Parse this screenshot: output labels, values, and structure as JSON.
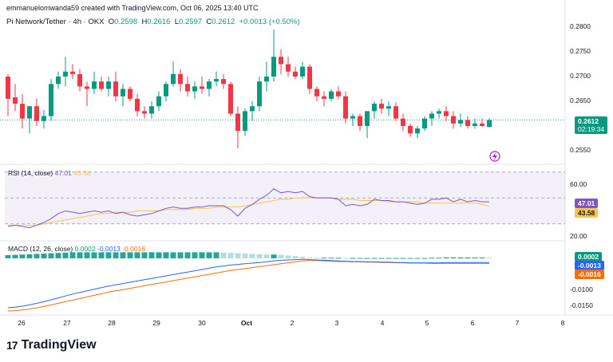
{
  "header": {
    "created_by": "emmanuelomwanda59 created with TradingView.com, Oct 06, 2025 13:40 UTC"
  },
  "symbol": {
    "name": "Pi Network/Tether · 4h · OKX",
    "o_label": "O",
    "o": "0.2598",
    "h_label": "H",
    "h": "0.2616",
    "l_label": "L",
    "l": "0.2597",
    "c_label": "C",
    "c": "0.2612",
    "change": "+0.0013 (+0.50%)"
  },
  "price_axis": {
    "ticks": [
      "0.2800",
      "0.2750",
      "0.2700",
      "0.2650",
      "0.2550"
    ]
  },
  "last_price": {
    "value": "0.2612",
    "countdown": "02:19:34"
  },
  "rsi": {
    "legend_name": "RSI (14, close)",
    "rsi_value": "47.01",
    "ma_value": "43.58",
    "ticks": [
      "60.00",
      "20.00"
    ],
    "band_upper": 70,
    "band_mid": 50,
    "band_lower": 30
  },
  "macd": {
    "legend_name": "MACD (12, 26, close)",
    "hist_value": "0.0002",
    "macd_value": "-0.0013",
    "signal_value": "-0.0016",
    "ticks": [
      "-0.0100",
      "-0.0150"
    ]
  },
  "time_axis": {
    "ticks": [
      "26",
      "27",
      "28",
      "29",
      "30",
      "Oct",
      "2",
      "3",
      "4",
      "5",
      "6",
      "7",
      "8"
    ]
  },
  "colors": {
    "up": "#089981",
    "down": "#f23645",
    "rsi": "#7e57c2",
    "rsi_ma": "#f5c64a",
    "macd": "#2962ff",
    "signal": "#ff6d00",
    "hist_up": "#26a69a",
    "hist_down": "#ef5350"
  },
  "brand": {
    "logo_text": "TradingView",
    "logo_mark": "17"
  },
  "chart_data": [
    {
      "type": "candlestick",
      "title": "Pi Network/Tether · 4h · OKX",
      "ylim": [
        0.2535,
        0.2815
      ],
      "candles": [
        {
          "o": 0.27,
          "h": 0.2705,
          "l": 0.262,
          "c": 0.2655
        },
        {
          "o": 0.2658,
          "h": 0.2685,
          "l": 0.263,
          "c": 0.2645
        },
        {
          "o": 0.2645,
          "h": 0.2665,
          "l": 0.2595,
          "c": 0.2615
        },
        {
          "o": 0.2615,
          "h": 0.264,
          "l": 0.2585,
          "c": 0.264
        },
        {
          "o": 0.264,
          "h": 0.2655,
          "l": 0.26,
          "c": 0.261
        },
        {
          "o": 0.261,
          "h": 0.2632,
          "l": 0.2595,
          "c": 0.262
        },
        {
          "o": 0.262,
          "h": 0.2695,
          "l": 0.261,
          "c": 0.2685
        },
        {
          "o": 0.2685,
          "h": 0.271,
          "l": 0.2675,
          "c": 0.27
        },
        {
          "o": 0.27,
          "h": 0.274,
          "l": 0.268,
          "c": 0.271
        },
        {
          "o": 0.271,
          "h": 0.2725,
          "l": 0.2695,
          "c": 0.2705
        },
        {
          "o": 0.2705,
          "h": 0.2715,
          "l": 0.267,
          "c": 0.268
        },
        {
          "o": 0.268,
          "h": 0.269,
          "l": 0.264,
          "c": 0.2675
        },
        {
          "o": 0.2675,
          "h": 0.271,
          "l": 0.2665,
          "c": 0.269
        },
        {
          "o": 0.269,
          "h": 0.27,
          "l": 0.267,
          "c": 0.2675
        },
        {
          "o": 0.2675,
          "h": 0.27,
          "l": 0.266,
          "c": 0.269
        },
        {
          "o": 0.269,
          "h": 0.271,
          "l": 0.265,
          "c": 0.266
        },
        {
          "o": 0.266,
          "h": 0.2685,
          "l": 0.264,
          "c": 0.2675
        },
        {
          "o": 0.2675,
          "h": 0.268,
          "l": 0.265,
          "c": 0.2655
        },
        {
          "o": 0.2655,
          "h": 0.2665,
          "l": 0.262,
          "c": 0.263
        },
        {
          "o": 0.263,
          "h": 0.264,
          "l": 0.2615,
          "c": 0.2625
        },
        {
          "o": 0.2625,
          "h": 0.265,
          "l": 0.2615,
          "c": 0.264
        },
        {
          "o": 0.264,
          "h": 0.267,
          "l": 0.263,
          "c": 0.266
        },
        {
          "o": 0.266,
          "h": 0.269,
          "l": 0.265,
          "c": 0.2685
        },
        {
          "o": 0.2685,
          "h": 0.273,
          "l": 0.268,
          "c": 0.2705
        },
        {
          "o": 0.2705,
          "h": 0.2715,
          "l": 0.267,
          "c": 0.2685
        },
        {
          "o": 0.2685,
          "h": 0.27,
          "l": 0.266,
          "c": 0.267
        },
        {
          "o": 0.267,
          "h": 0.269,
          "l": 0.2655,
          "c": 0.268
        },
        {
          "o": 0.268,
          "h": 0.27,
          "l": 0.2665,
          "c": 0.2675
        },
        {
          "o": 0.2675,
          "h": 0.2695,
          "l": 0.266,
          "c": 0.269
        },
        {
          "o": 0.269,
          "h": 0.271,
          "l": 0.268,
          "c": 0.2695
        },
        {
          "o": 0.2695,
          "h": 0.2705,
          "l": 0.2675,
          "c": 0.2685
        },
        {
          "o": 0.2685,
          "h": 0.269,
          "l": 0.262,
          "c": 0.2625
        },
        {
          "o": 0.2625,
          "h": 0.264,
          "l": 0.2555,
          "c": 0.259
        },
        {
          "o": 0.259,
          "h": 0.2635,
          "l": 0.258,
          "c": 0.263
        },
        {
          "o": 0.263,
          "h": 0.265,
          "l": 0.261,
          "c": 0.264
        },
        {
          "o": 0.264,
          "h": 0.27,
          "l": 0.263,
          "c": 0.269
        },
        {
          "o": 0.269,
          "h": 0.273,
          "l": 0.267,
          "c": 0.27
        },
        {
          "o": 0.27,
          "h": 0.2795,
          "l": 0.269,
          "c": 0.274
        },
        {
          "o": 0.274,
          "h": 0.2755,
          "l": 0.2705,
          "c": 0.2725
        },
        {
          "o": 0.2725,
          "h": 0.274,
          "l": 0.27,
          "c": 0.271
        },
        {
          "o": 0.271,
          "h": 0.272,
          "l": 0.2695,
          "c": 0.27
        },
        {
          "o": 0.27,
          "h": 0.273,
          "l": 0.2695,
          "c": 0.272
        },
        {
          "o": 0.272,
          "h": 0.2725,
          "l": 0.2665,
          "c": 0.2675
        },
        {
          "o": 0.2675,
          "h": 0.268,
          "l": 0.265,
          "c": 0.266
        },
        {
          "o": 0.266,
          "h": 0.267,
          "l": 0.264,
          "c": 0.2655
        },
        {
          "o": 0.2655,
          "h": 0.2675,
          "l": 0.265,
          "c": 0.267
        },
        {
          "o": 0.267,
          "h": 0.268,
          "l": 0.2655,
          "c": 0.266
        },
        {
          "o": 0.266,
          "h": 0.267,
          "l": 0.2605,
          "c": 0.2615
        },
        {
          "o": 0.2615,
          "h": 0.2625,
          "l": 0.26,
          "c": 0.262
        },
        {
          "o": 0.262,
          "h": 0.2625,
          "l": 0.259,
          "c": 0.26
        },
        {
          "o": 0.26,
          "h": 0.263,
          "l": 0.2575,
          "c": 0.263
        },
        {
          "o": 0.263,
          "h": 0.265,
          "l": 0.2615,
          "c": 0.2645
        },
        {
          "o": 0.2645,
          "h": 0.2655,
          "l": 0.2625,
          "c": 0.2635
        },
        {
          "o": 0.2635,
          "h": 0.265,
          "l": 0.262,
          "c": 0.264
        },
        {
          "o": 0.264,
          "h": 0.2648,
          "l": 0.261,
          "c": 0.2615
        },
        {
          "o": 0.2615,
          "h": 0.2625,
          "l": 0.259,
          "c": 0.26
        },
        {
          "o": 0.26,
          "h": 0.2605,
          "l": 0.2578,
          "c": 0.2585
        },
        {
          "o": 0.2585,
          "h": 0.26,
          "l": 0.2575,
          "c": 0.2595
        },
        {
          "o": 0.2595,
          "h": 0.262,
          "l": 0.259,
          "c": 0.2615
        },
        {
          "o": 0.2615,
          "h": 0.263,
          "l": 0.26,
          "c": 0.2625
        },
        {
          "o": 0.2625,
          "h": 0.2635,
          "l": 0.2615,
          "c": 0.263
        },
        {
          "o": 0.263,
          "h": 0.264,
          "l": 0.261,
          "c": 0.262
        },
        {
          "o": 0.262,
          "h": 0.263,
          "l": 0.2595,
          "c": 0.2605
        },
        {
          "o": 0.2605,
          "h": 0.2625,
          "l": 0.2598,
          "c": 0.2612
        },
        {
          "o": 0.2612,
          "h": 0.262,
          "l": 0.2595,
          "c": 0.26
        },
        {
          "o": 0.26,
          "h": 0.2615,
          "l": 0.2595,
          "c": 0.2605
        },
        {
          "o": 0.2605,
          "h": 0.2615,
          "l": 0.2598,
          "c": 0.26
        },
        {
          "o": 0.2598,
          "h": 0.2616,
          "l": 0.2597,
          "c": 0.2612
        }
      ]
    },
    {
      "type": "line",
      "title": "RSI (14, close)",
      "ylim": [
        10,
        75
      ],
      "series": [
        {
          "name": "RSI",
          "values": [
            28,
            29,
            28,
            27,
            29,
            31,
            34,
            38,
            40,
            39,
            38,
            39,
            40,
            39,
            40,
            38,
            39,
            37,
            36,
            37,
            38,
            40,
            42,
            43,
            42,
            42,
            43,
            43,
            44,
            44,
            44,
            41,
            36,
            42,
            45,
            49,
            52,
            57,
            54,
            55,
            54,
            55,
            51,
            50,
            50,
            50,
            49,
            44,
            45,
            44,
            45,
            49,
            48,
            48,
            47,
            47,
            46,
            45,
            46,
            49,
            49,
            50,
            47,
            49,
            47,
            48,
            47,
            47.01
          ]
        },
        {
          "name": "RSI MA",
          "values": [
            29,
            29,
            29,
            29,
            29,
            30,
            31,
            32,
            33,
            34,
            35,
            36,
            37,
            38,
            38,
            39,
            39,
            39,
            40,
            40,
            40,
            40,
            41,
            41,
            41,
            41,
            42,
            42,
            42,
            43,
            43,
            43,
            43,
            44,
            45,
            46,
            47,
            48,
            49,
            49,
            50,
            50,
            50,
            50,
            50,
            50,
            49,
            49,
            49,
            48,
            48,
            48,
            48,
            47,
            47,
            47,
            47,
            47,
            46,
            46,
            46,
            46,
            46,
            46,
            46,
            46,
            45,
            43.58
          ]
        }
      ]
    },
    {
      "type": "line",
      "title": "MACD (12, 26, close)",
      "ylim": [
        -0.017,
        0.001
      ],
      "series": [
        {
          "name": "MACD",
          "values": [
            -0.0155,
            -0.0153,
            -0.015,
            -0.0146,
            -0.0141,
            -0.0136,
            -0.013,
            -0.0124,
            -0.0118,
            -0.0112,
            -0.0107,
            -0.0102,
            -0.0097,
            -0.0092,
            -0.0087,
            -0.0083,
            -0.0079,
            -0.0075,
            -0.0071,
            -0.0067,
            -0.0063,
            -0.0059,
            -0.0055,
            -0.0051,
            -0.0047,
            -0.0043,
            -0.0039,
            -0.0035,
            -0.0031,
            -0.0027,
            -0.0024,
            -0.0021,
            -0.0019,
            -0.0017,
            -0.0015,
            -0.0013,
            -0.0011,
            -0.0008,
            -0.0006,
            -0.0005,
            -0.0004,
            -0.0003,
            -0.0004,
            -0.0005,
            -0.0006,
            -0.0007,
            -0.0008,
            -0.0009,
            -0.001,
            -0.001,
            -0.0011,
            -0.0011,
            -0.0012,
            -0.0012,
            -0.0013,
            -0.0013,
            -0.0014,
            -0.0014,
            -0.0014,
            -0.0014,
            -0.0014,
            -0.0013,
            -0.0013,
            -0.0013,
            -0.0013,
            -0.0013,
            -0.0013,
            -0.0013
          ]
        },
        {
          "name": "Signal",
          "values": [
            -0.0165,
            -0.0164,
            -0.0162,
            -0.0159,
            -0.0155,
            -0.0151,
            -0.0146,
            -0.0141,
            -0.0136,
            -0.0131,
            -0.0126,
            -0.0121,
            -0.0116,
            -0.0111,
            -0.0106,
            -0.0102,
            -0.0098,
            -0.0094,
            -0.009,
            -0.0086,
            -0.0082,
            -0.0078,
            -0.0074,
            -0.007,
            -0.0066,
            -0.0062,
            -0.0058,
            -0.0054,
            -0.005,
            -0.0046,
            -0.0042,
            -0.0038,
            -0.0035,
            -0.0032,
            -0.0029,
            -0.0026,
            -0.0023,
            -0.002,
            -0.0017,
            -0.0014,
            -0.0011,
            -0.0008,
            -0.0007,
            -0.0007,
            -0.0008,
            -0.0009,
            -0.001,
            -0.001,
            -0.0011,
            -0.0011,
            -0.0012,
            -0.0012,
            -0.0013,
            -0.0013,
            -0.0014,
            -0.0014,
            -0.0015,
            -0.0015,
            -0.0015,
            -0.0016,
            -0.0016,
            -0.0016,
            -0.0016,
            -0.0016,
            -0.0016,
            -0.0016,
            -0.0016,
            -0.0016
          ]
        },
        {
          "name": "Histogram",
          "values": [
            0.001,
            0.0011,
            0.0012,
            0.0013,
            0.0014,
            0.0015,
            0.0016,
            0.0017,
            0.0018,
            0.0019,
            0.0019,
            0.0019,
            0.0019,
            0.0019,
            0.0019,
            0.0019,
            0.0019,
            0.0019,
            0.0019,
            0.0019,
            0.0019,
            0.0019,
            0.0019,
            0.0019,
            0.0019,
            0.0019,
            0.0019,
            0.0019,
            0.0019,
            0.0019,
            0.0018,
            0.0017,
            0.0016,
            0.0015,
            0.0014,
            0.0013,
            0.0012,
            0.0012,
            0.0011,
            0.0009,
            0.0007,
            0.0005,
            0.0003,
            0.0002,
            0.0002,
            0.0002,
            0.0002,
            0.0001,
            0.0001,
            0.0001,
            0.0001,
            0.0001,
            0.0001,
            0.0001,
            0.0001,
            0.0001,
            0.0001,
            0.0001,
            0.0001,
            0.0002,
            0.0002,
            0.0003,
            0.0003,
            0.0003,
            0.0003,
            0.0003,
            0.0003,
            0.0002
          ]
        }
      ]
    }
  ]
}
